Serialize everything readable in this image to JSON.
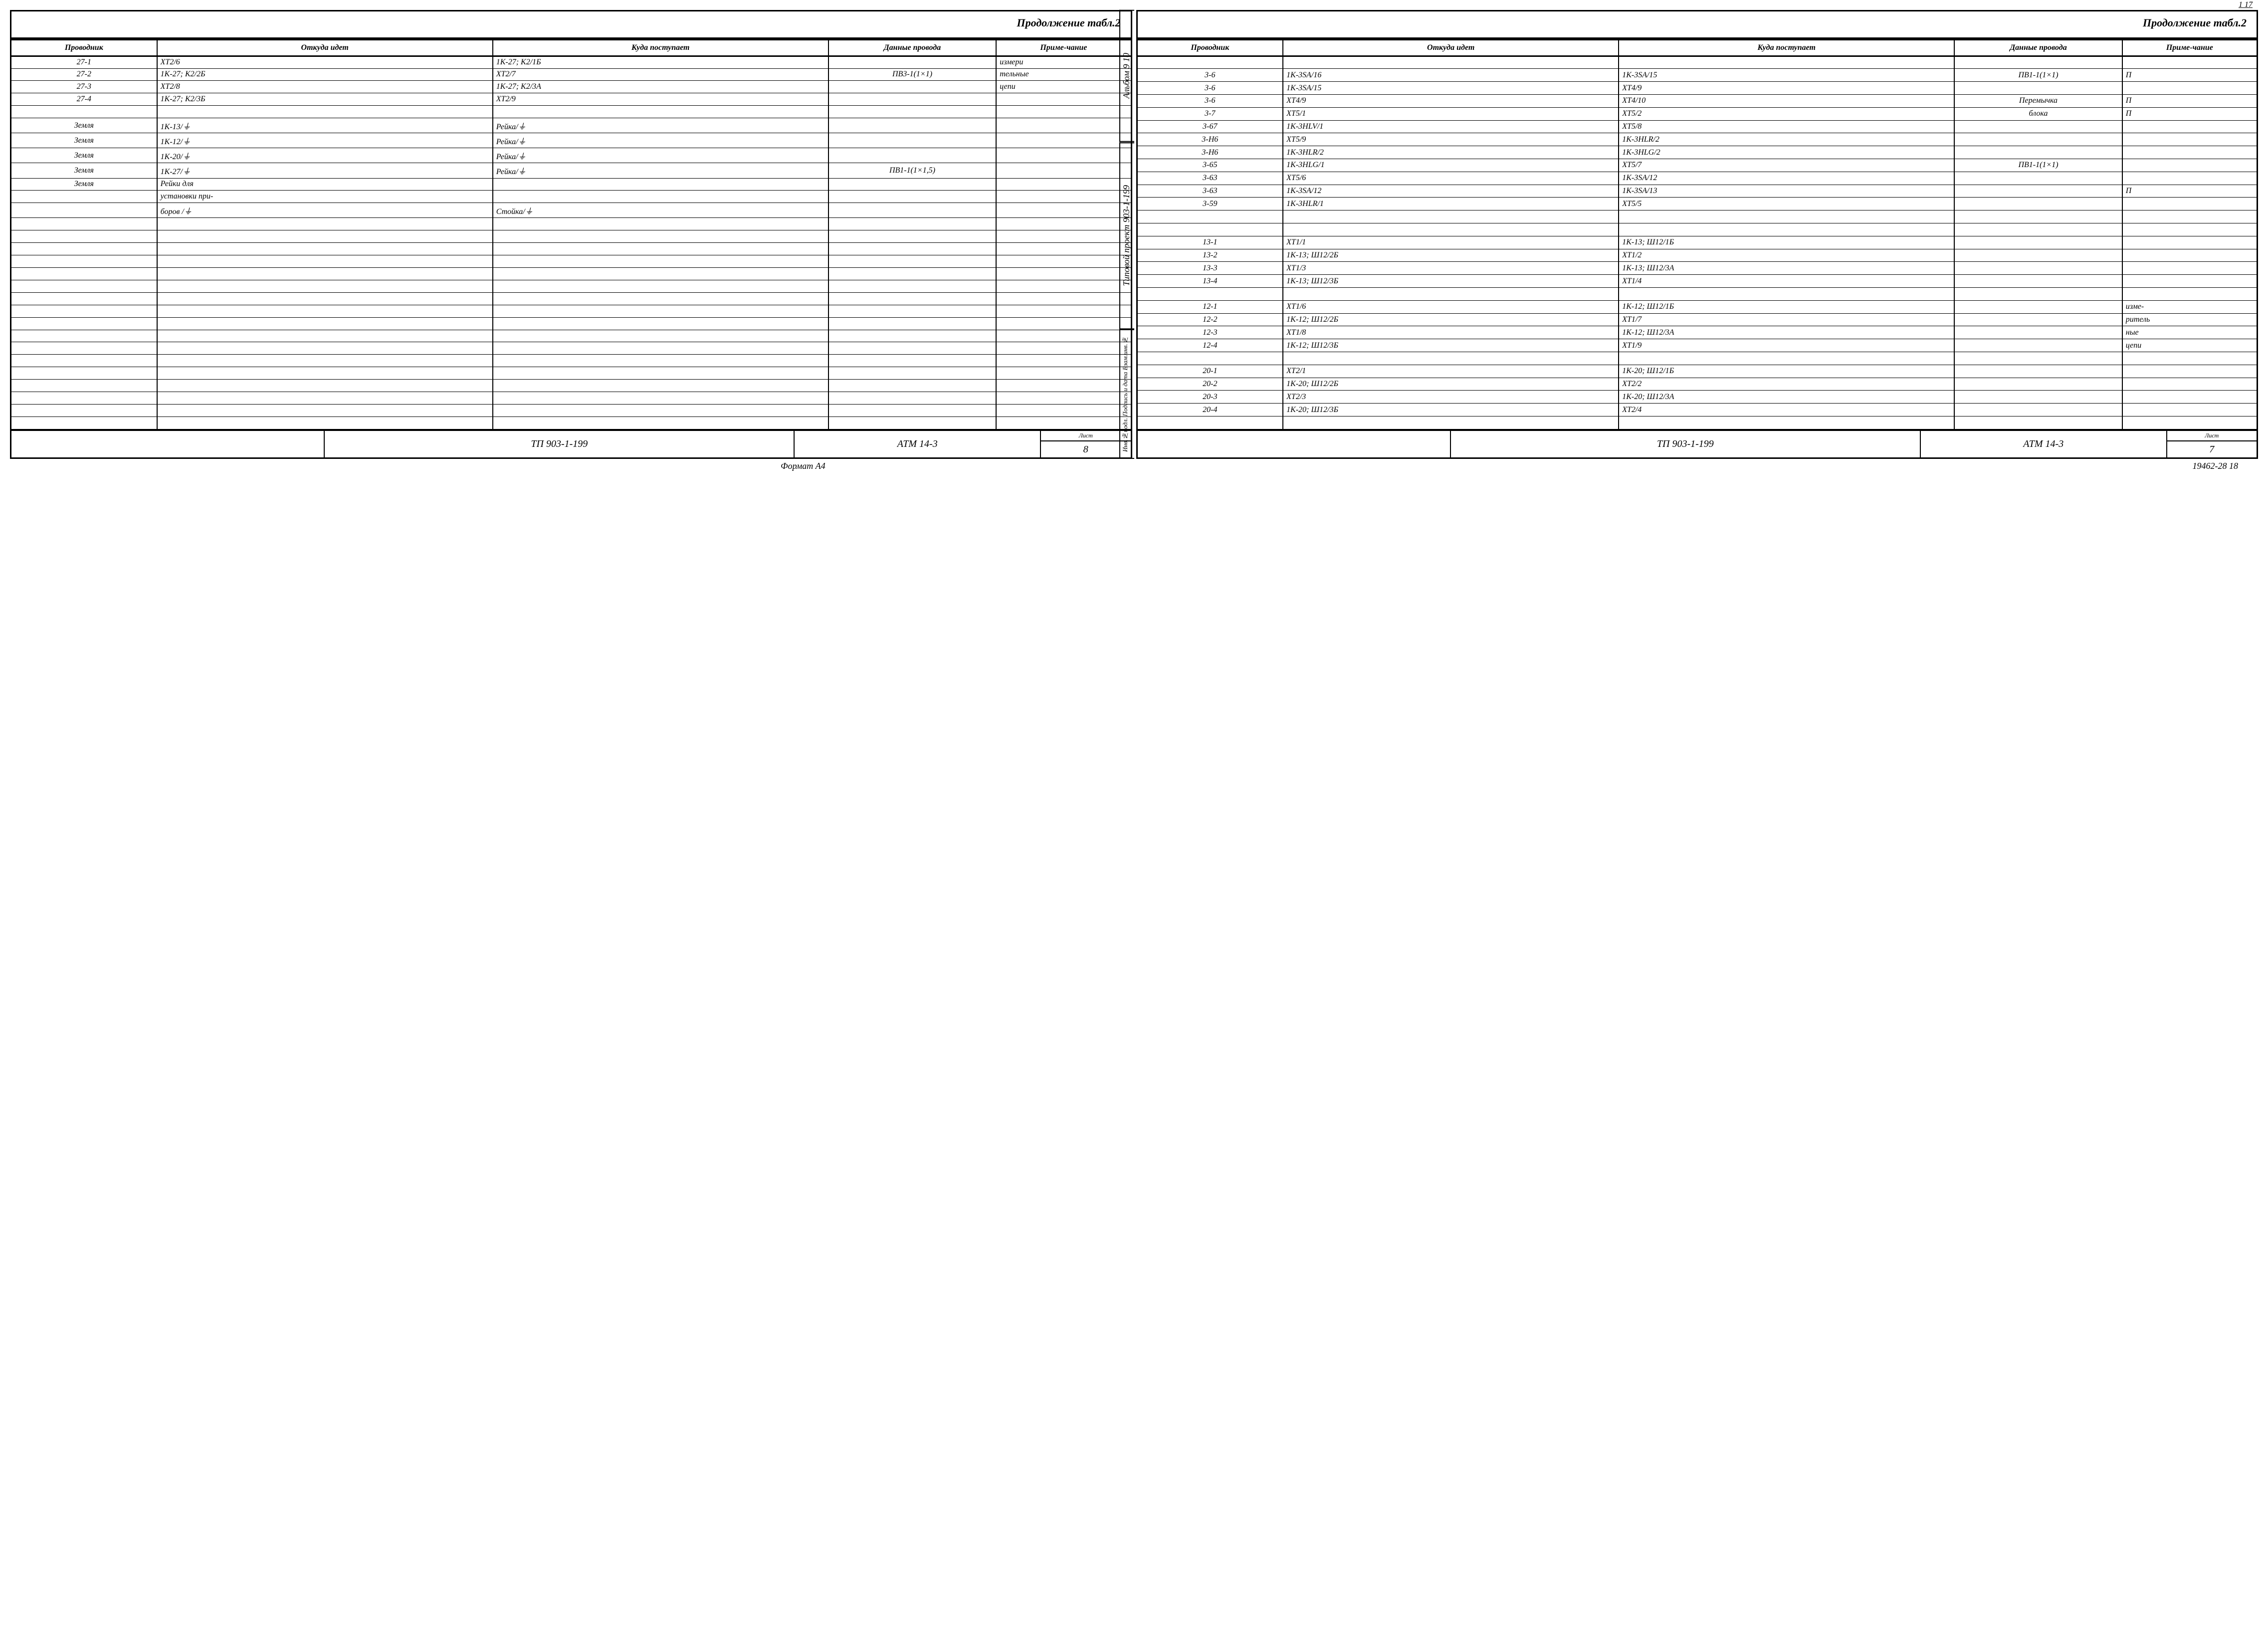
{
  "continuation_label": "Продолжение табл.2",
  "columns": [
    "Проводник",
    "Откуда идет",
    "Куда поступает",
    "Данные провода",
    "Приме-чание"
  ],
  "left_rows": [
    [
      "27-1",
      "XT2/6",
      "1K-27; K2/1Б",
      "",
      "измери"
    ],
    [
      "27-2",
      "1K-27; K2/2Б",
      "XT2/7",
      "ПВ3-1(1×1)",
      "тельные"
    ],
    [
      "27-3",
      "XT2/8",
      "1K-27; K2/3А",
      "",
      "цепи"
    ],
    [
      "27-4",
      "1K-27; K2/3Б",
      "XT2/9",
      "",
      ""
    ],
    [
      "",
      "",
      "",
      "",
      ""
    ],
    [
      "Земля",
      "1K-13/⏚",
      "Рейка/⏚",
      "",
      ""
    ],
    [
      "Земля",
      "1K-12/⏚",
      "Рейка/⏚",
      "",
      ""
    ],
    [
      "Земля",
      "1K-20/⏚",
      "Рейка/⏚",
      "",
      ""
    ],
    [
      "Земля",
      "1K-27/⏚",
      "Рейка/⏚",
      "ПВ1-1(1×1,5)",
      ""
    ],
    [
      "Земля",
      "Рейки для",
      "",
      "",
      ""
    ],
    [
      "",
      "установки при-",
      "",
      "",
      ""
    ],
    [
      "",
      "боров /⏚",
      "Стойка/⏚",
      "",
      ""
    ],
    [
      "",
      "",
      "",
      "",
      ""
    ],
    [
      "",
      "",
      "",
      "",
      ""
    ],
    [
      "",
      "",
      "",
      "",
      ""
    ],
    [
      "",
      "",
      "",
      "",
      ""
    ],
    [
      "",
      "",
      "",
      "",
      ""
    ],
    [
      "",
      "",
      "",
      "",
      ""
    ],
    [
      "",
      "",
      "",
      "",
      ""
    ],
    [
      "",
      "",
      "",
      "",
      ""
    ],
    [
      "",
      "",
      "",
      "",
      ""
    ],
    [
      "",
      "",
      "",
      "",
      ""
    ],
    [
      "",
      "",
      "",
      "",
      ""
    ],
    [
      "",
      "",
      "",
      "",
      ""
    ],
    [
      "",
      "",
      "",
      "",
      ""
    ],
    [
      "",
      "",
      "",
      "",
      ""
    ],
    [
      "",
      "",
      "",
      "",
      ""
    ],
    [
      "",
      "",
      "",
      "",
      ""
    ],
    [
      "",
      "",
      "",
      "",
      ""
    ]
  ],
  "right_rows": [
    [
      "",
      "",
      "",
      "",
      ""
    ],
    [
      "3-6",
      "1K-3SA/16",
      "1K-3SA/15",
      "ПВ1-1(1×1)",
      "П"
    ],
    [
      "3-6",
      "1K-3SA/15",
      "XT4/9",
      "",
      ""
    ],
    [
      "3-6",
      "XT4/9",
      "XT4/10",
      "Перемычка",
      "П"
    ],
    [
      "3-7",
      "XT5/1",
      "XT5/2",
      "блока",
      "П"
    ],
    [
      "3-67",
      "1K-3HLV/1",
      "XT5/8",
      "",
      ""
    ],
    [
      "3-H6",
      "XT5/9",
      "1K-3HLR/2",
      "",
      ""
    ],
    [
      "3-H6",
      "1K-3HLR/2",
      "1K-3HLG/2",
      "",
      ""
    ],
    [
      "3-65",
      "1K-3HLG/1",
      "XT5/7",
      "ПВ1-1(1×1)",
      ""
    ],
    [
      "3-63",
      "XT5/6",
      "1K-3SA/12",
      "",
      ""
    ],
    [
      "3-63",
      "1K-3SA/12",
      "1K-3SA/13",
      "",
      "П"
    ],
    [
      "3-59",
      "1K-3HLR/1",
      "XT5/5",
      "",
      ""
    ],
    [
      "",
      "",
      "",
      "",
      ""
    ],
    [
      "",
      "",
      "",
      "",
      ""
    ],
    [
      "13-1",
      "XT1/1",
      "1K-13; Ш12/1Б",
      "",
      ""
    ],
    [
      "13-2",
      "1K-13; Ш12/2Б",
      "XT1/2",
      "",
      ""
    ],
    [
      "13-3",
      "XT1/3",
      "1K-13; Ш12/3А",
      "",
      ""
    ],
    [
      "13-4",
      "1K-13; Ш12/3Б",
      "XT1/4",
      "",
      ""
    ],
    [
      "",
      "",
      "",
      "",
      ""
    ],
    [
      "12-1",
      "XT1/6",
      "1K-12; Ш12/1Б",
      "",
      "изме-"
    ],
    [
      "12-2",
      "1K-12; Ш12/2Б",
      "XT1/7",
      "",
      "ритель"
    ],
    [
      "12-3",
      "XT1/8",
      "1K-12; Ш12/3А",
      "",
      "ные"
    ],
    [
      "12-4",
      "1K-12; Ш12/3Б",
      "XT1/9",
      "",
      "цепи"
    ],
    [
      "",
      "",
      "",
      "",
      ""
    ],
    [
      "20-1",
      "XT2/1",
      "1K-20; Ш12/1Б",
      "",
      ""
    ],
    [
      "20-2",
      "1K-20; Ш12/2Б",
      "XT2/2",
      "",
      ""
    ],
    [
      "20-3",
      "XT2/3",
      "1K-20; Ш12/3А",
      "",
      ""
    ],
    [
      "20-4",
      "1K-20; Ш12/3Б",
      "XT2/4",
      "",
      ""
    ],
    [
      "",
      "",
      "",
      "",
      ""
    ]
  ],
  "title_block": {
    "project": "ТП 903-1-199",
    "doc": "АТМ 14-3",
    "sheet_label": "Лист",
    "left_sheet": "8",
    "right_sheet": "7"
  },
  "footer": {
    "format": "Формат А4",
    "print": "19462-28  18"
  },
  "side": {
    "album": "Альбом 9 10",
    "project": "Типовой проект 903-1-199",
    "stamp": "Инв.№подл. Подпись и дата Взам.инв.№"
  },
  "corner_page": "1  17"
}
